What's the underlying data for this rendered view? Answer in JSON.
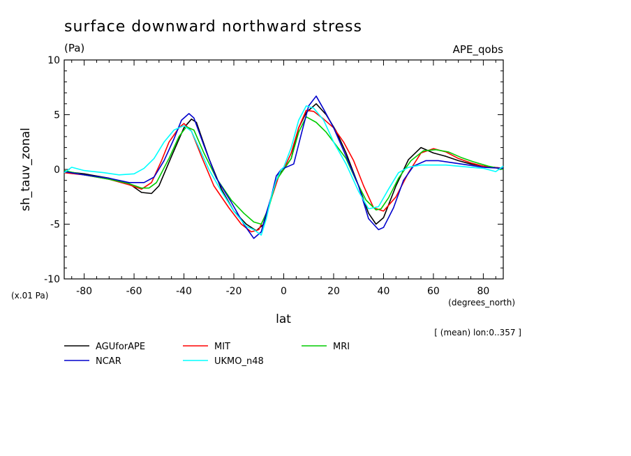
{
  "chart_data": {
    "type": "line",
    "title": "surface downward northward stress",
    "units": "(Pa)",
    "experiment": "APE_qobs",
    "xlabel": "lat",
    "xunits": "(degrees_north)",
    "ylabel": "sh_tauv_zonal",
    "yscale_note": "(x.01 Pa)",
    "averaging_note": "[ (mean) lon:0..357 ]",
    "xlim": [
      -88,
      88
    ],
    "ylim": [
      -10,
      10
    ],
    "xticks": [
      -80,
      -60,
      -40,
      -20,
      0,
      20,
      40,
      60,
      80
    ],
    "xtick_labels": [
      "-80",
      "-60",
      "-40",
      "-20",
      "0",
      "20",
      "40",
      "60",
      "80"
    ],
    "yticks": [
      -10,
      -5,
      0,
      5,
      10
    ],
    "ytick_labels": [
      "-10",
      "-5",
      "0",
      "5",
      "10"
    ],
    "legend_placement": "below",
    "series": [
      {
        "name": "AGUforAPE",
        "color": "#000000",
        "x": [
          -88,
          -80,
          -70,
          -62,
          -57,
          -53,
          -50,
          -45,
          -40,
          -37,
          -35,
          -30,
          -25,
          -20,
          -15,
          -11,
          -8,
          -5,
          -2,
          0,
          3,
          6,
          9,
          13,
          17,
          21,
          25,
          30,
          34,
          37,
          40,
          45,
          50,
          55,
          60,
          65,
          70,
          75,
          80,
          88
        ],
        "y": [
          -0.2,
          -0.4,
          -0.8,
          -1.3,
          -2.1,
          -2.2,
          -1.5,
          1.2,
          3.8,
          4.6,
          4.3,
          1.0,
          -1.8,
          -3.8,
          -5.0,
          -5.6,
          -5.0,
          -2.5,
          -0.4,
          0,
          1.0,
          3.8,
          5.2,
          6.0,
          5.0,
          3.5,
          1.5,
          -1.5,
          -4.0,
          -5.0,
          -4.4,
          -1.5,
          0.9,
          2.0,
          1.5,
          1.2,
          0.8,
          0.5,
          0.3,
          0.1
        ]
      },
      {
        "name": "MIT",
        "color": "#ff0000",
        "x": [
          -88,
          -80,
          -70,
          -62,
          -57,
          -53,
          -49,
          -46,
          -42,
          -40,
          -37,
          -33,
          -28,
          -22,
          -17,
          -13,
          -10,
          -7,
          -4,
          -2,
          0,
          3,
          6,
          9,
          12,
          16,
          20,
          24,
          28,
          32,
          36,
          40,
          45,
          50,
          55,
          60,
          65,
          70,
          75,
          80,
          88
        ],
        "y": [
          -0.3,
          -0.5,
          -0.9,
          -1.4,
          -1.8,
          -1.2,
          0.8,
          2.5,
          3.8,
          4.2,
          3.5,
          1.2,
          -1.5,
          -3.5,
          -5.0,
          -5.7,
          -5.5,
          -4.0,
          -2.0,
          -0.6,
          0,
          1.5,
          3.8,
          5.4,
          5.3,
          4.6,
          3.8,
          2.5,
          0.8,
          -1.5,
          -3.5,
          -3.8,
          -2.5,
          -0.3,
          1.5,
          1.9,
          1.6,
          1.0,
          0.6,
          0.3,
          0.1
        ]
      },
      {
        "name": "MRI",
        "color": "#00cc00",
        "x": [
          -88,
          -80,
          -70,
          -62,
          -57,
          -54,
          -51,
          -46,
          -42,
          -39,
          -36,
          -32,
          -27,
          -21,
          -16,
          -12,
          -9,
          -6,
          -3,
          0,
          3,
          6,
          9,
          13,
          17,
          21,
          25,
          29,
          33,
          37,
          39,
          42,
          46,
          51,
          56,
          61,
          66,
          71,
          76,
          82,
          88
        ],
        "y": [
          -0.1,
          -0.5,
          -0.9,
          -1.3,
          -1.7,
          -1.7,
          -1.2,
          1.0,
          3.0,
          3.9,
          3.6,
          1.5,
          -0.8,
          -2.8,
          -4.0,
          -4.8,
          -5.0,
          -3.5,
          -1.0,
          0,
          1.0,
          3.4,
          4.8,
          4.3,
          3.4,
          2.2,
          1.0,
          -1.0,
          -2.8,
          -3.7,
          -3.6,
          -2.6,
          -0.8,
          0.8,
          1.7,
          1.8,
          1.6,
          1.1,
          0.7,
          0.3,
          0.0
        ]
      },
      {
        "name": "NCAR",
        "color": "#0000cc",
        "x": [
          -88,
          -80,
          -70,
          -62,
          -56,
          -52,
          -48,
          -44,
          -41,
          -38,
          -36,
          -32,
          -27,
          -21,
          -16,
          -12,
          -9,
          -7,
          -5,
          -3,
          -1,
          0,
          2,
          4,
          7,
          10,
          13,
          16,
          20,
          25,
          30,
          34,
          38,
          40,
          44,
          48,
          52,
          57,
          62,
          68,
          74,
          80,
          88
        ],
        "y": [
          -0.2,
          -0.5,
          -0.8,
          -1.2,
          -1.2,
          -0.7,
          0.8,
          2.8,
          4.5,
          5.1,
          4.7,
          2.2,
          -0.8,
          -3.0,
          -5.0,
          -6.3,
          -5.7,
          -4.0,
          -2.5,
          -0.6,
          0,
          0.1,
          0.3,
          0.5,
          3.2,
          5.8,
          6.7,
          5.5,
          3.8,
          1.2,
          -1.5,
          -4.5,
          -5.5,
          -5.3,
          -3.5,
          -1.0,
          0.3,
          0.8,
          0.8,
          0.6,
          0.4,
          0.2,
          0.1
        ]
      },
      {
        "name": "UKMO_n48",
        "color": "#00ffff",
        "x": [
          -88,
          -85,
          -80,
          -72,
          -66,
          -60,
          -56,
          -52,
          -48,
          -44,
          -40,
          -37,
          -34,
          -30,
          -25,
          -20,
          -15,
          -12,
          -9,
          -7,
          -5,
          -3,
          -1,
          0,
          3,
          6,
          9,
          12,
          16,
          20,
          25,
          30,
          34,
          38,
          42,
          46,
          50,
          55,
          60,
          65,
          70,
          75,
          80,
          85,
          88
        ],
        "y": [
          -0.3,
          0.2,
          -0.1,
          -0.3,
          -0.5,
          -0.4,
          0.1,
          1.0,
          2.5,
          3.6,
          4.0,
          3.5,
          2.0,
          0.0,
          -2.0,
          -3.8,
          -5.2,
          -5.5,
          -6.0,
          -4.5,
          -2.5,
          -1.0,
          0,
          0.2,
          2.0,
          4.5,
          5.8,
          5.6,
          4.5,
          2.5,
          0.5,
          -2.0,
          -3.6,
          -3.4,
          -1.8,
          -0.3,
          0.2,
          0.4,
          0.4,
          0.4,
          0.3,
          0.2,
          0.1,
          -0.2,
          0.3
        ]
      }
    ]
  }
}
